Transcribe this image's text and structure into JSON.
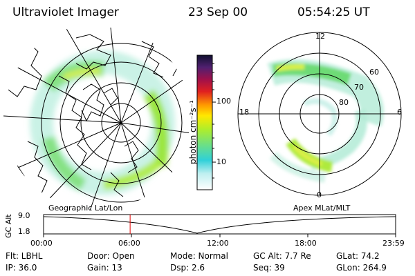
{
  "header": {
    "instrument": "Ultraviolet Imager",
    "date": "23 Sep 00",
    "time": "05:54:25 UT"
  },
  "colorbar": {
    "unit_label": "photon cm⁻²s⁻¹",
    "ticks": [
      "100",
      "10"
    ]
  },
  "polar_plot": {
    "mlt_labels": {
      "top": "12",
      "left": "18",
      "right": "6",
      "bottom": "0"
    },
    "lat_labels": [
      "60",
      "70",
      "80"
    ]
  },
  "captions": {
    "left": "Geographic Lat/Lon",
    "right": "Apex MLat/MLT"
  },
  "altitude_plot": {
    "ylabel": "GC Alt",
    "y_ticks": [
      "9.0",
      "1.8"
    ],
    "x_ticks": [
      "00:00",
      "06:00",
      "12:00",
      "18:00",
      "23:59"
    ],
    "current_time_hours": 5.9
  },
  "info": {
    "filter": "Flt: LBHL",
    "ip": "IP: 36.0",
    "door": "Door:  Open",
    "gain": "Gain: 13",
    "mode": "Mode:  Normal",
    "dsp": "Dsp:       2.6",
    "gc_alt": "GC Alt:  7.7 Re",
    "seq": "Seq:  39",
    "glat": "GLat:   74.2",
    "glon": "GLon: 264.9"
  }
}
